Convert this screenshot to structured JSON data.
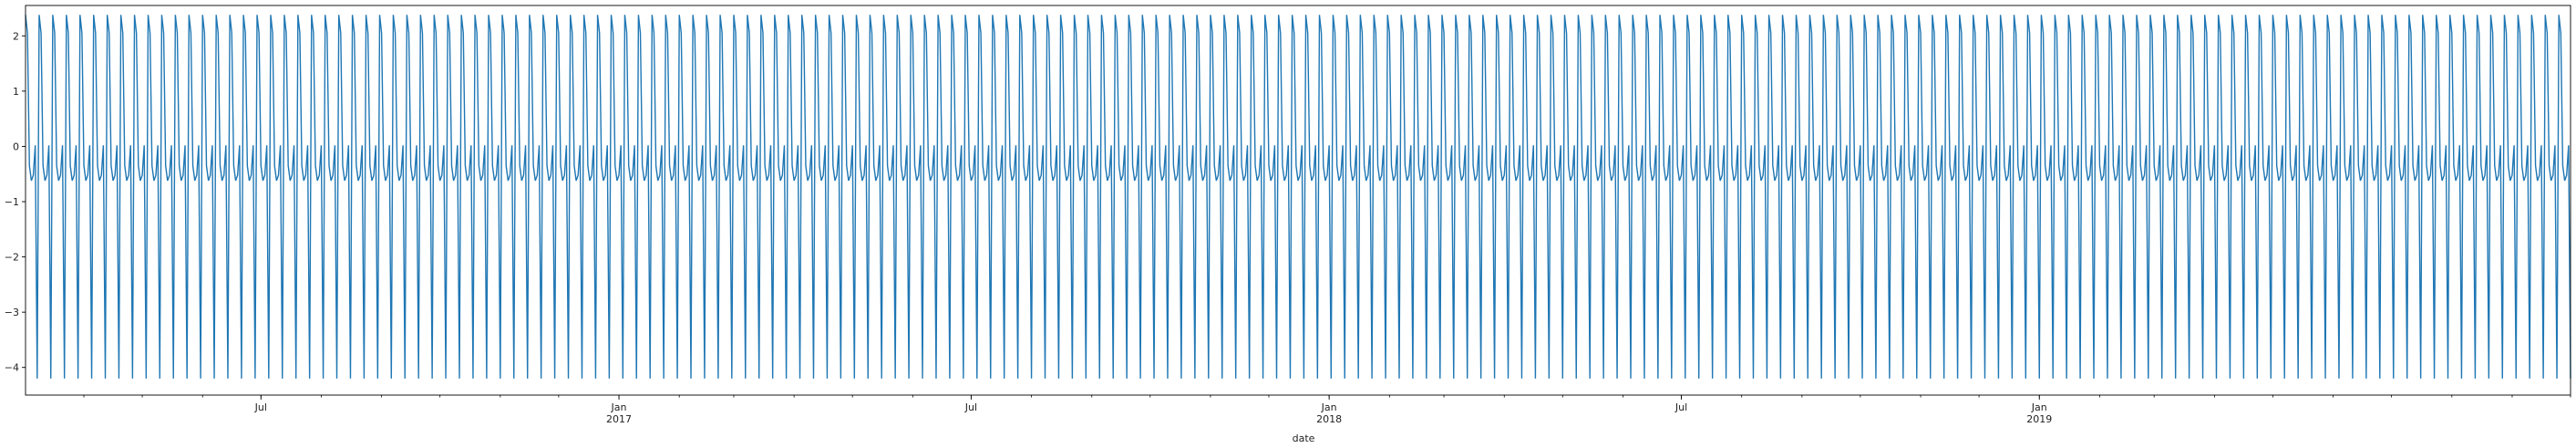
{
  "chart_data": {
    "type": "line",
    "title": "",
    "xlabel": "date",
    "ylabel": "",
    "x_start": "2016-03-02",
    "x_end": "2019-10-01",
    "ylim": [
      -4.5,
      2.55
    ],
    "grid": false,
    "legend": "none",
    "line_color": "#1f77b4",
    "weekly_pattern": [
      2.38,
      2.05,
      -0.35,
      -0.62,
      -0.52,
      0.02,
      -4.2
    ],
    "yticks": [
      {
        "value": 2,
        "label": "2"
      },
      {
        "value": 1,
        "label": "1"
      },
      {
        "value": 0,
        "label": "0"
      },
      {
        "value": -1,
        "label": "−1"
      },
      {
        "value": -2,
        "label": "−2"
      },
      {
        "value": -3,
        "label": "−3"
      },
      {
        "value": -4,
        "label": "−4"
      }
    ],
    "xticks_major": [
      {
        "date": "2016-07-01",
        "label": "Jul",
        "year": ""
      },
      {
        "date": "2017-01-01",
        "label": "Jan",
        "year": "2017"
      },
      {
        "date": "2017-07-01",
        "label": "Jul",
        "year": ""
      },
      {
        "date": "2018-01-01",
        "label": "Jan",
        "year": "2018"
      },
      {
        "date": "2018-07-01",
        "label": "Jul",
        "year": ""
      },
      {
        "date": "2019-01-01",
        "label": "Jan",
        "year": "2019"
      }
    ]
  }
}
